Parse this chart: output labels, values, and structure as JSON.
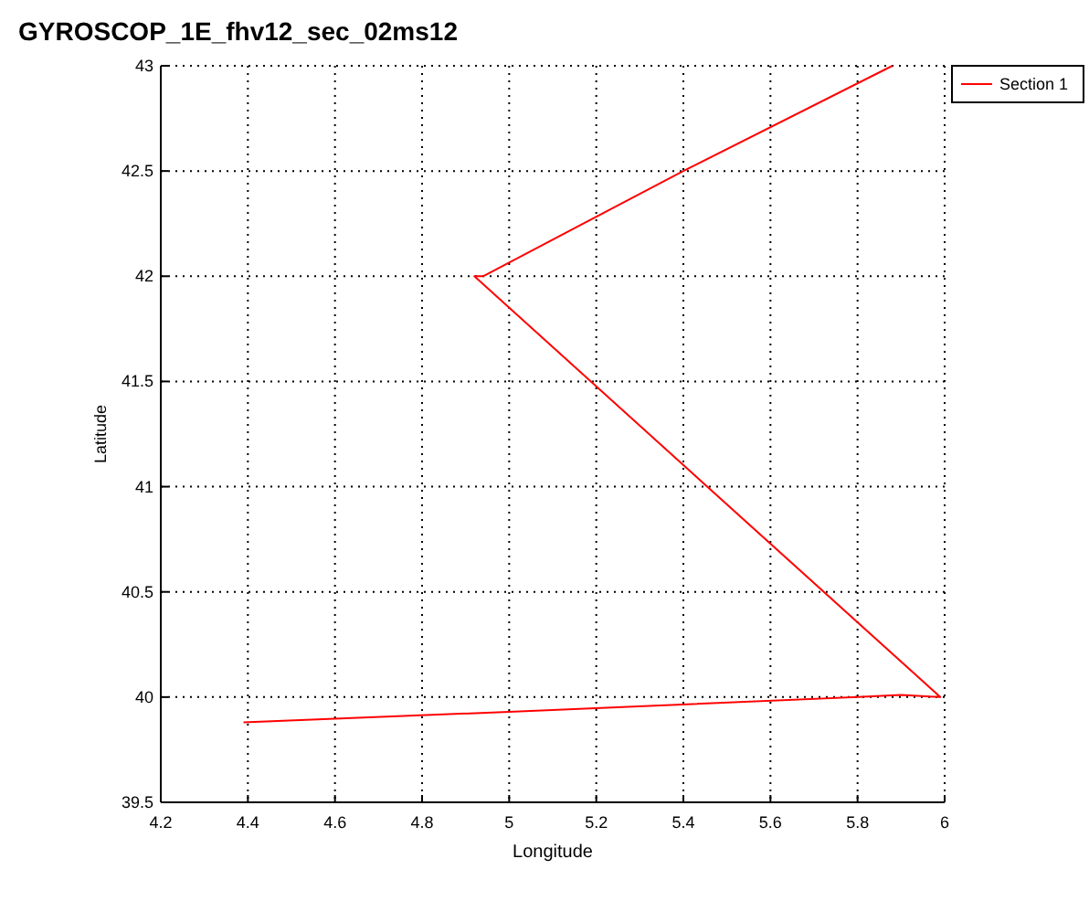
{
  "chart_data": {
    "type": "line",
    "title": "GYROSCOP_1E_fhv12_sec_02ms12",
    "xlabel": "Longitude",
    "ylabel": "Latitude",
    "series": [
      {
        "name": "Section 1",
        "color": "#ff0000",
        "x": [
          4.39,
          5.0,
          5.8,
          5.9,
          5.99,
          4.92,
          4.94,
          5.4,
          5.88
        ],
        "values": [
          39.88,
          39.93,
          40.0,
          40.01,
          40.0,
          42.0,
          42.0,
          42.5,
          43.0
        ]
      }
    ],
    "xlim": [
      4.2,
      6
    ],
    "xticks": [
      4.2,
      4.4,
      4.6,
      4.8,
      5,
      5.2,
      5.4,
      5.6,
      5.8,
      6
    ],
    "ylim": [
      39.5,
      43
    ],
    "yticks": [
      39.5,
      40,
      40.5,
      41,
      41.5,
      42,
      42.5,
      43
    ],
    "grid": true,
    "legend": "top right",
    "marker": "none",
    "line_style": "solid"
  }
}
